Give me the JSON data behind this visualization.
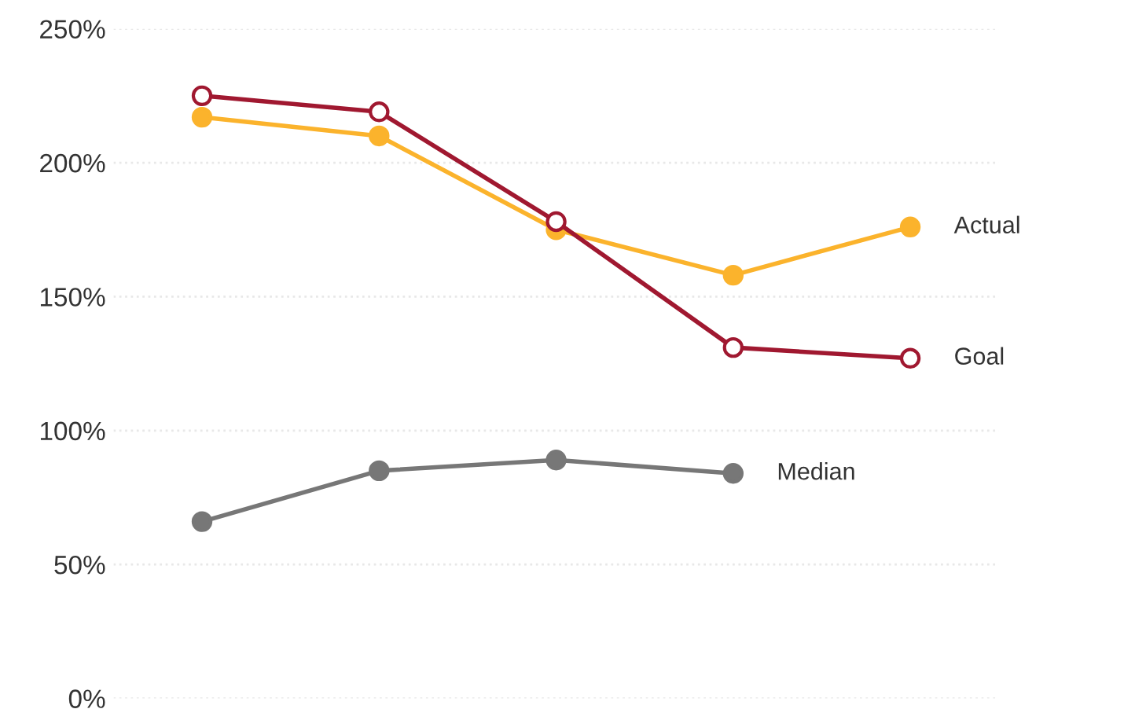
{
  "chart_data": {
    "type": "line",
    "categories": [
      null,
      null,
      null,
      null,
      null
    ],
    "series": [
      {
        "name": "Actual",
        "color": "#fbb32c",
        "marker": "circle",
        "values": [
          217,
          210,
          175,
          158,
          176
        ]
      },
      {
        "name": "Goal",
        "color": "#a01830",
        "marker": "circle",
        "values": [
          225,
          219,
          178,
          131,
          127
        ]
      },
      {
        "name": "Median",
        "color": "#777777",
        "marker": "circle",
        "values": [
          66,
          85,
          89,
          84,
          null
        ]
      }
    ],
    "ylim": [
      0,
      250
    ],
    "yticks": [
      {
        "value": 0,
        "label": "0%"
      },
      {
        "value": 50,
        "label": "50%"
      },
      {
        "value": 100,
        "label": "100%"
      },
      {
        "value": 150,
        "label": "150%"
      },
      {
        "value": 200,
        "label": "200%"
      },
      {
        "value": 250,
        "label": "250%"
      }
    ],
    "grid": "y",
    "legend": false,
    "tick_labels": "y"
  }
}
